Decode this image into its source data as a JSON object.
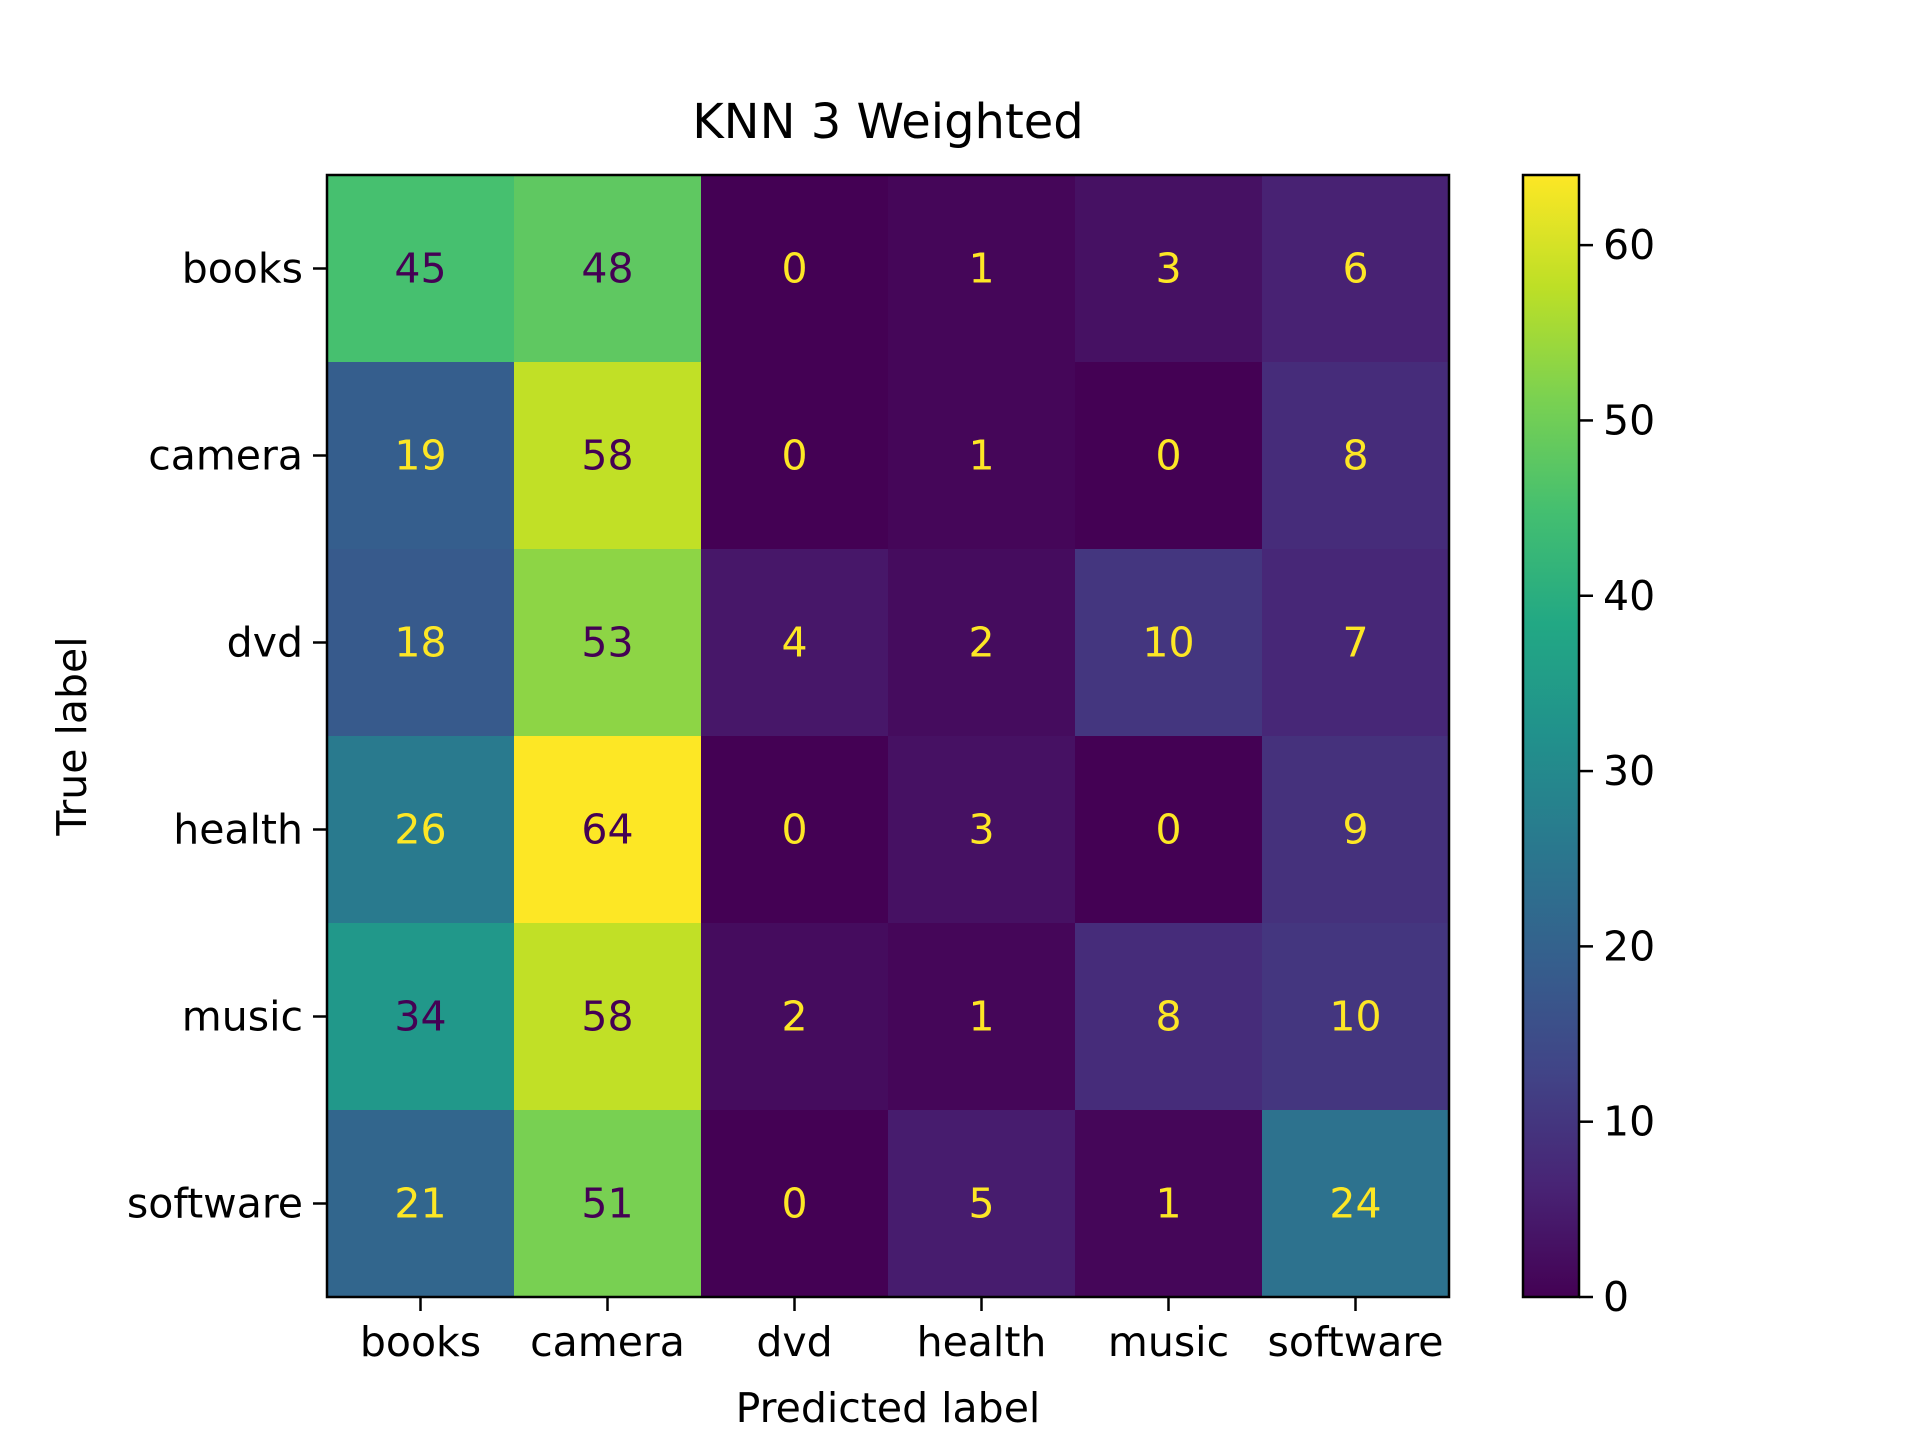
{
  "chart_data": {
    "type": "heatmap",
    "title": "KNN 3 Weighted",
    "xlabel": "Predicted label",
    "ylabel": "True label",
    "x_categories": [
      "books",
      "camera",
      "dvd",
      "health",
      "music",
      "software"
    ],
    "y_categories": [
      "books",
      "camera",
      "dvd",
      "health",
      "music",
      "software"
    ],
    "values": [
      [
        45,
        48,
        0,
        1,
        3,
        6
      ],
      [
        19,
        58,
        0,
        1,
        0,
        8
      ],
      [
        18,
        53,
        4,
        2,
        10,
        7
      ],
      [
        26,
        64,
        0,
        3,
        0,
        9
      ],
      [
        34,
        58,
        2,
        1,
        8,
        10
      ],
      [
        21,
        51,
        0,
        5,
        1,
        24
      ]
    ],
    "colorbar": {
      "min": 0,
      "max": 64,
      "ticks": [
        0,
        10,
        20,
        30,
        40,
        50,
        60
      ]
    },
    "colormap": "viridis",
    "text_colors": {
      "on_dark": "#fde725",
      "on_light": "#440154"
    }
  }
}
